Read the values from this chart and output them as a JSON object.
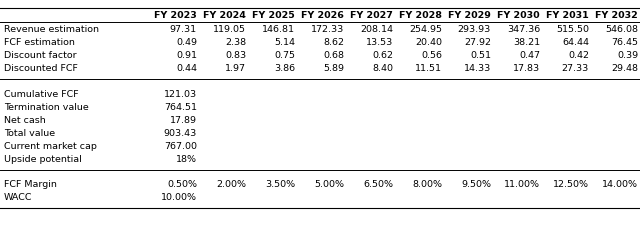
{
  "years": [
    "FY 2023",
    "FY 2024",
    "FY 2025",
    "FY 2026",
    "FY 2027",
    "FY 2028",
    "FY 2029",
    "FY 2030",
    "FY 2031",
    "FY 2032"
  ],
  "rows": {
    "Revenue estimation": [
      "97.31",
      "119.05",
      "146.81",
      "172.33",
      "208.14",
      "254.95",
      "293.93",
      "347.36",
      "515.50",
      "546.08"
    ],
    "FCF estimation": [
      "0.49",
      "2.38",
      "5.14",
      "8.62",
      "13.53",
      "20.40",
      "27.92",
      "38.21",
      "64.44",
      "76.45"
    ],
    "Discount factor": [
      "0.91",
      "0.83",
      "0.75",
      "0.68",
      "0.62",
      "0.56",
      "0.51",
      "0.47",
      "0.42",
      "0.39"
    ],
    "Discounted FCF": [
      "0.44",
      "1.97",
      "3.86",
      "5.89",
      "8.40",
      "11.51",
      "14.33",
      "17.83",
      "27.33",
      "29.48"
    ]
  },
  "summary_labels": [
    "Cumulative FCF",
    "Termination value",
    "Net cash",
    "Total value",
    "Current market cap",
    "Upside potential"
  ],
  "summary_values": [
    "121.03",
    "764.51",
    "17.89",
    "903.43",
    "767.00",
    "18%"
  ],
  "bottom_rows": {
    "FCF Margin": [
      "0.50%",
      "2.00%",
      "3.50%",
      "5.00%",
      "6.50%",
      "8.00%",
      "9.50%",
      "11.00%",
      "12.50%",
      "14.00%"
    ],
    "WACC": [
      "10.00%",
      "",
      "",
      "",
      "",
      "",
      "",
      "",
      "",
      ""
    ]
  },
  "background_color": "#ffffff",
  "text_color": "#000000",
  "font_size": 6.8
}
